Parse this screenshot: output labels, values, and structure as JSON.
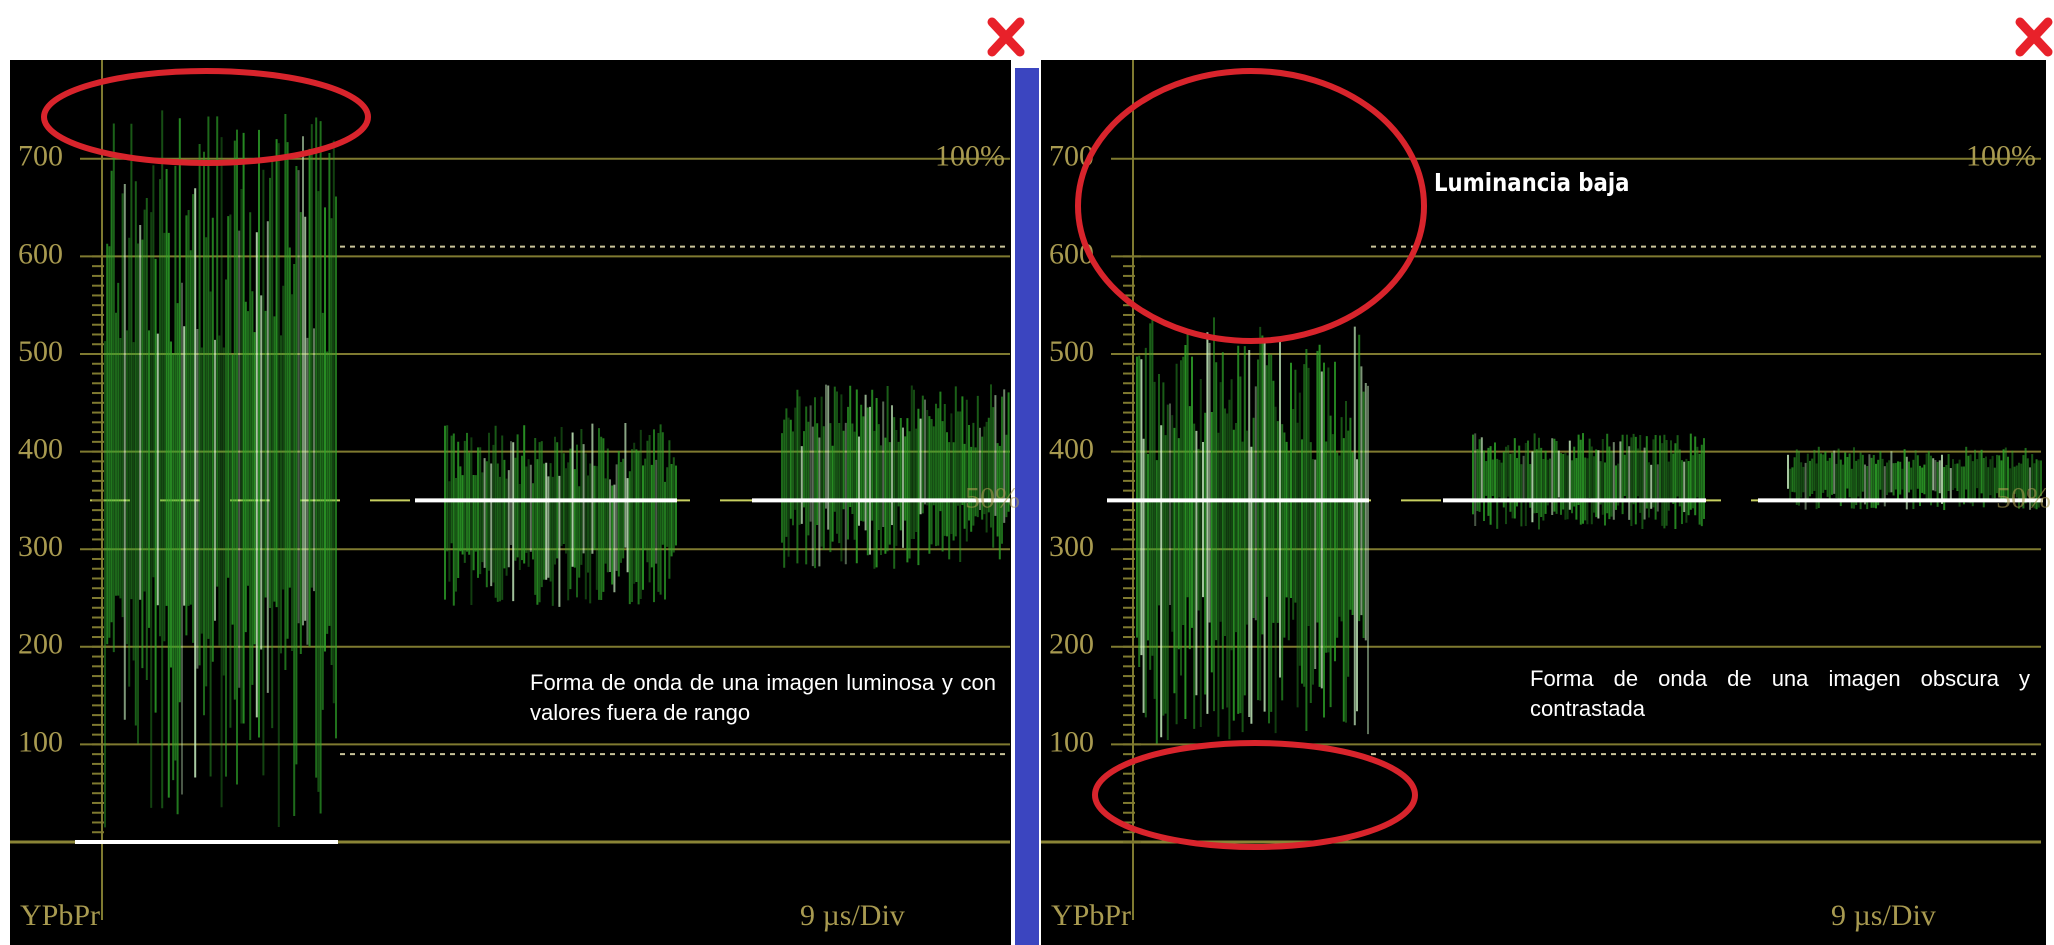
{
  "panels": [
    {
      "scale_labels": [
        "700",
        "600",
        "500",
        "400",
        "300",
        "200",
        "100"
      ],
      "percent_top": "100%",
      "percent_mid": "50%",
      "format": "YPbPr",
      "time_scale": "9 µs/Div",
      "caption": "Forma de onda de una imagen luminosa y con valores fuera de rango"
    },
    {
      "scale_labels": [
        "700",
        "600",
        "500",
        "400",
        "300",
        "200",
        "100"
      ],
      "percent_top": "100%",
      "percent_mid": "50%",
      "format": "YPbPr",
      "time_scale": "9 µs/Div",
      "callout": "Luminancia baja",
      "caption": "Forma de onda de una imagen obscura y contrastada"
    }
  ]
}
